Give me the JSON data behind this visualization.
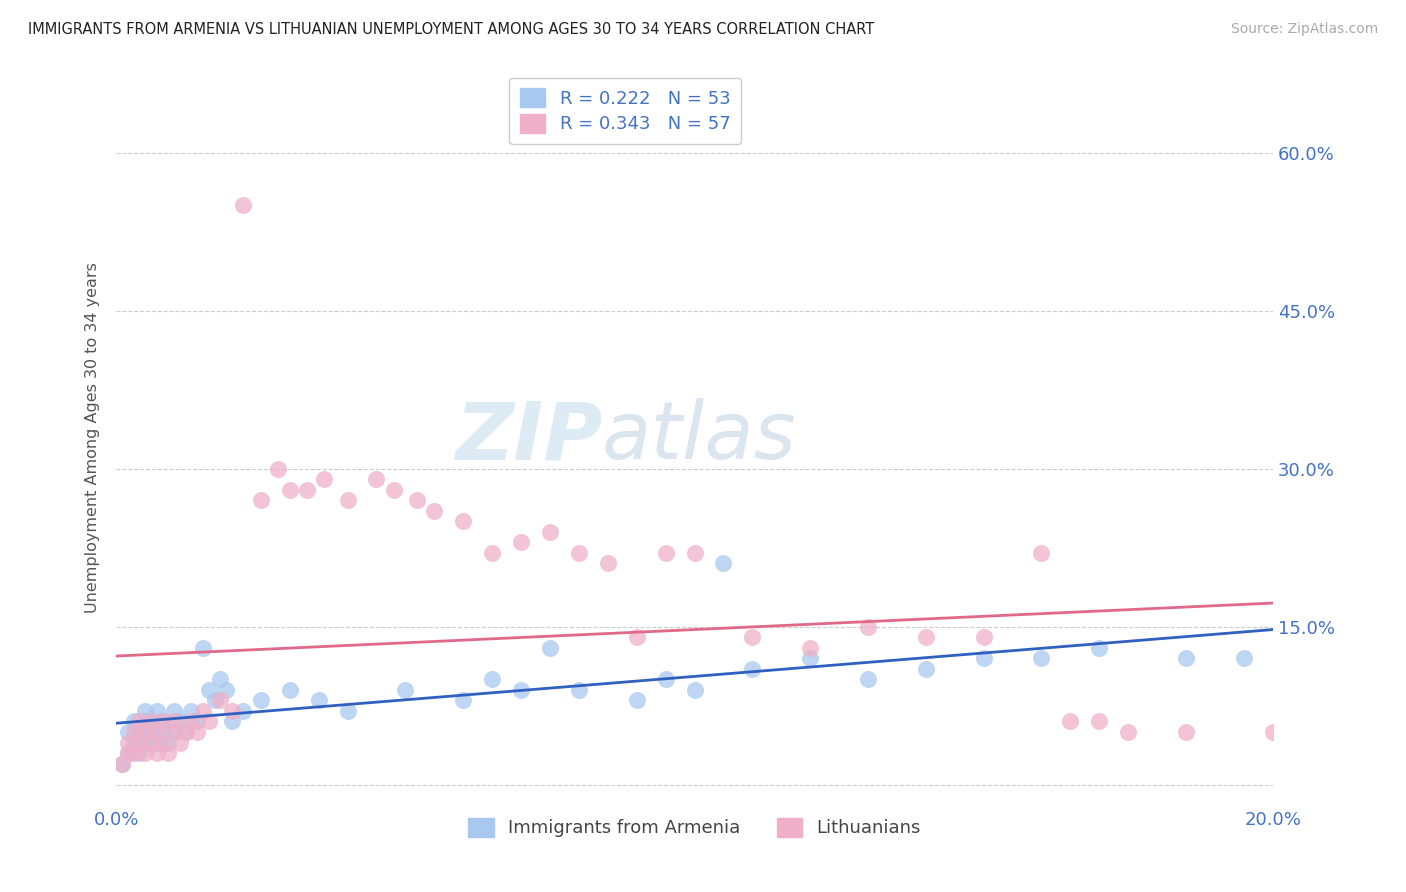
{
  "title": "IMMIGRANTS FROM ARMENIA VS LITHUANIAN UNEMPLOYMENT AMONG AGES 30 TO 34 YEARS CORRELATION CHART",
  "source": "Source: ZipAtlas.com",
  "ylabel": "Unemployment Among Ages 30 to 34 years",
  "xlim": [
    0.0,
    0.2
  ],
  "ylim": [
    -0.02,
    0.68
  ],
  "xticks": [
    0.0,
    0.05,
    0.1,
    0.15,
    0.2
  ],
  "xtick_labels": [
    "0.0%",
    "",
    "",
    "",
    "20.0%"
  ],
  "yticks": [
    0.0,
    0.15,
    0.3,
    0.45,
    0.6
  ],
  "ytick_labels_right": [
    "",
    "15.0%",
    "30.0%",
    "45.0%",
    "60.0%"
  ],
  "series1_label": "Immigrants from Armenia",
  "series1_color": "#a8c8f0",
  "series1_line_color": "#3060c0",
  "series1_R": "0.222",
  "series1_N": "53",
  "series2_label": "Lithuanians",
  "series2_color": "#f0b0c8",
  "series2_line_color": "#e06888",
  "series2_R": "0.343",
  "series2_N": "57",
  "series1_x": [
    0.001,
    0.002,
    0.002,
    0.003,
    0.003,
    0.004,
    0.004,
    0.005,
    0.005,
    0.005,
    0.006,
    0.006,
    0.007,
    0.007,
    0.008,
    0.008,
    0.009,
    0.01,
    0.01,
    0.011,
    0.012,
    0.013,
    0.014,
    0.015,
    0.016,
    0.017,
    0.018,
    0.019,
    0.02,
    0.022,
    0.025,
    0.03,
    0.035,
    0.04,
    0.05,
    0.06,
    0.065,
    0.07,
    0.075,
    0.08,
    0.09,
    0.095,
    0.1,
    0.105,
    0.11,
    0.12,
    0.13,
    0.14,
    0.15,
    0.16,
    0.17,
    0.185,
    0.195
  ],
  "series1_y": [
    0.02,
    0.03,
    0.05,
    0.04,
    0.06,
    0.03,
    0.05,
    0.04,
    0.06,
    0.07,
    0.05,
    0.06,
    0.04,
    0.07,
    0.05,
    0.06,
    0.04,
    0.05,
    0.07,
    0.06,
    0.05,
    0.07,
    0.06,
    0.13,
    0.09,
    0.08,
    0.1,
    0.09,
    0.06,
    0.07,
    0.08,
    0.09,
    0.08,
    0.07,
    0.09,
    0.08,
    0.1,
    0.09,
    0.13,
    0.09,
    0.08,
    0.1,
    0.09,
    0.21,
    0.11,
    0.12,
    0.1,
    0.11,
    0.12,
    0.12,
    0.13,
    0.12,
    0.12
  ],
  "series2_x": [
    0.001,
    0.002,
    0.002,
    0.003,
    0.003,
    0.004,
    0.004,
    0.005,
    0.005,
    0.006,
    0.006,
    0.007,
    0.007,
    0.008,
    0.008,
    0.009,
    0.01,
    0.01,
    0.011,
    0.012,
    0.013,
    0.014,
    0.015,
    0.016,
    0.018,
    0.02,
    0.022,
    0.025,
    0.028,
    0.03,
    0.033,
    0.036,
    0.04,
    0.045,
    0.048,
    0.052,
    0.055,
    0.06,
    0.065,
    0.07,
    0.075,
    0.08,
    0.085,
    0.09,
    0.095,
    0.1,
    0.11,
    0.12,
    0.13,
    0.14,
    0.15,
    0.16,
    0.165,
    0.17,
    0.175,
    0.185,
    0.2
  ],
  "series2_y": [
    0.02,
    0.03,
    0.04,
    0.03,
    0.05,
    0.04,
    0.06,
    0.03,
    0.05,
    0.04,
    0.06,
    0.03,
    0.05,
    0.04,
    0.06,
    0.03,
    0.05,
    0.06,
    0.04,
    0.05,
    0.06,
    0.05,
    0.07,
    0.06,
    0.08,
    0.07,
    0.55,
    0.27,
    0.3,
    0.28,
    0.28,
    0.29,
    0.27,
    0.29,
    0.28,
    0.27,
    0.26,
    0.25,
    0.22,
    0.23,
    0.24,
    0.22,
    0.21,
    0.14,
    0.22,
    0.22,
    0.14,
    0.13,
    0.15,
    0.14,
    0.14,
    0.22,
    0.06,
    0.06,
    0.05,
    0.05,
    0.05
  ],
  "watermark_zip": "ZIP",
  "watermark_atlas": "atlas",
  "background_color": "#ffffff",
  "grid_color": "#cccccc"
}
